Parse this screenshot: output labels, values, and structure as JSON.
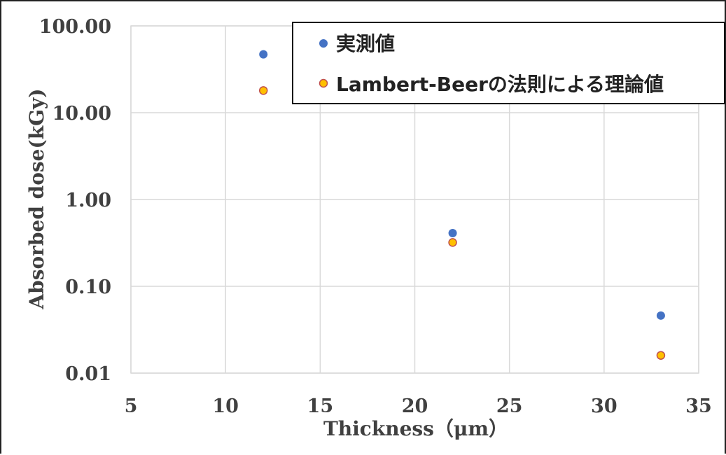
{
  "chart_data": {
    "type": "scatter",
    "title": "",
    "xlabel": "Thickness（μm）",
    "ylabel": "Absorbed dose(kGy)",
    "xlim": [
      5,
      35
    ],
    "ylim": [
      0.01,
      100
    ],
    "y_scale": "log",
    "x_ticks": [
      5,
      10,
      15,
      20,
      25,
      30,
      35
    ],
    "x_tick_labels": [
      "5",
      "10",
      "15",
      "20",
      "25",
      "30",
      "35"
    ],
    "y_ticks": [
      0.01,
      0.1,
      1,
      10,
      100
    ],
    "y_tick_labels": [
      "0.01",
      "0.10",
      "1.00",
      "10.00",
      "100.00"
    ],
    "grid": true,
    "legend_position": "top-right",
    "series": [
      {
        "name": "実測値",
        "color": "#4472C4",
        "marker": "filled-circle",
        "x": [
          12,
          22,
          33
        ],
        "y": [
          47,
          0.41,
          0.046
        ]
      },
      {
        "name": "Lambert-Beerの法則による理論値",
        "color": "#FFC000",
        "edge_color": "#C0504D",
        "marker": "ringed-circle",
        "x": [
          12,
          22,
          33
        ],
        "y": [
          18,
          0.32,
          0.016
        ]
      }
    ]
  }
}
